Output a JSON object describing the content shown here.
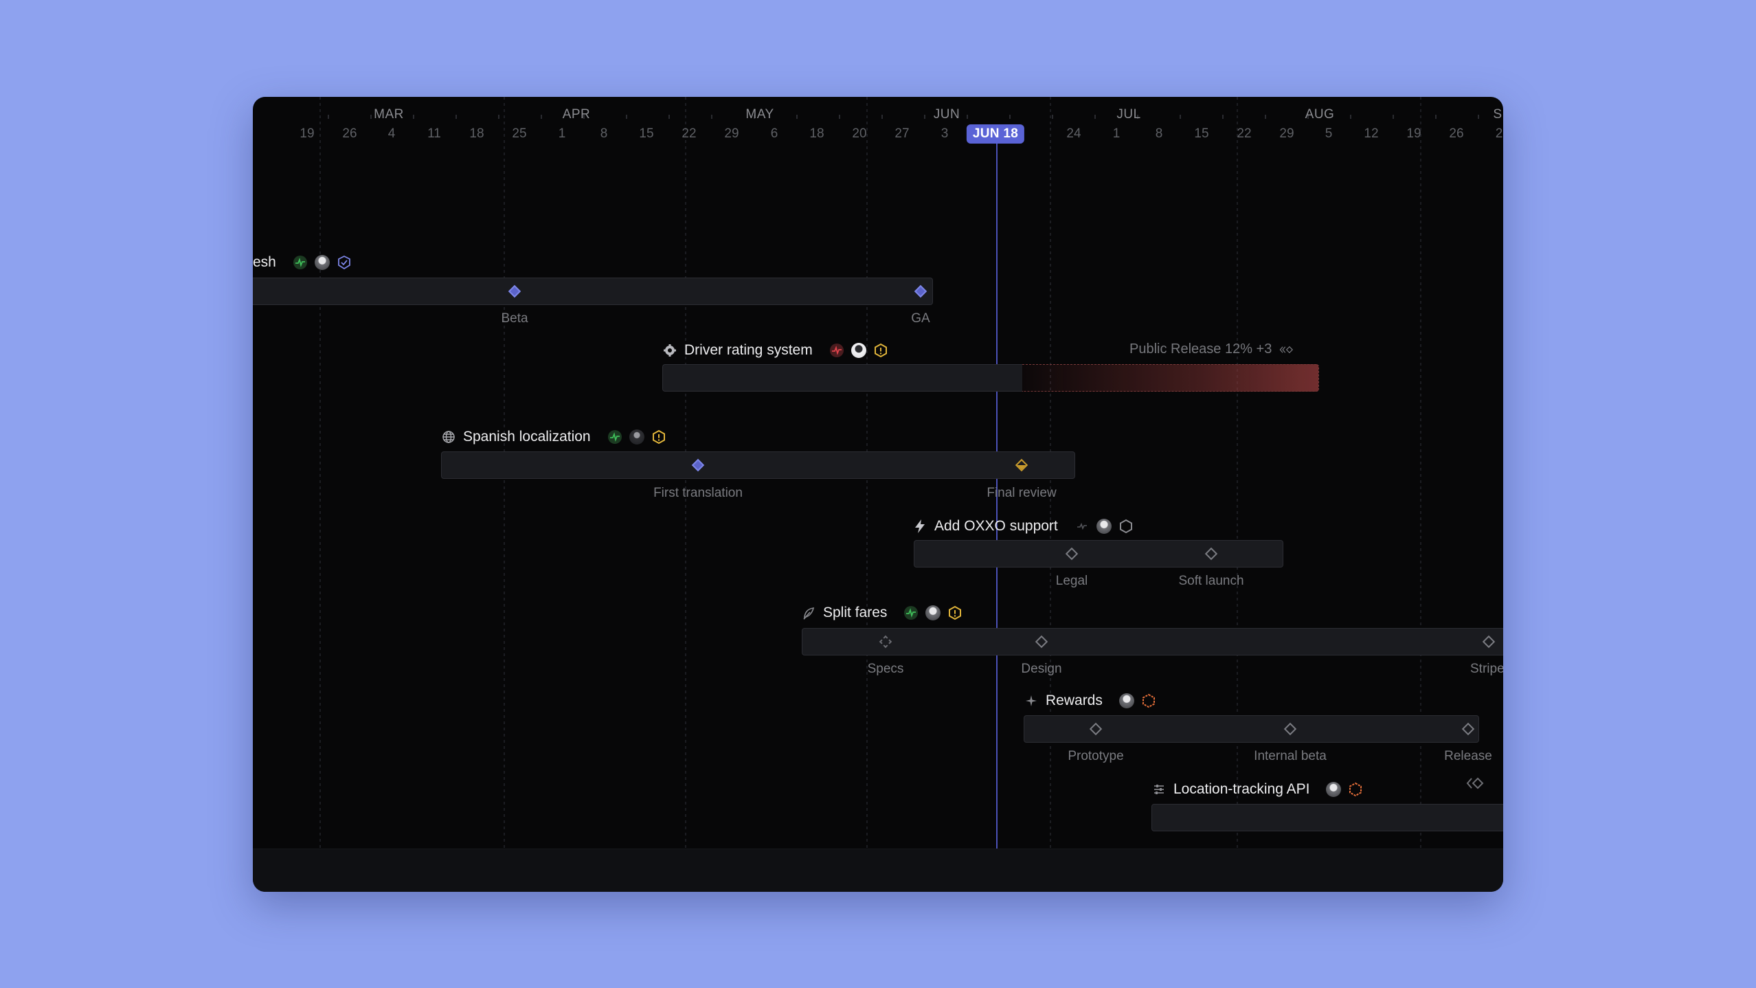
{
  "timeline": {
    "months": [
      "MAR",
      "APR",
      "MAY",
      "JUN",
      "JUL",
      "AUG",
      "S"
    ],
    "days": [
      "19",
      "26",
      "4",
      "11",
      "18",
      "25",
      "1",
      "8",
      "15",
      "22",
      "29",
      "6",
      "18",
      "20",
      "27",
      "3",
      "24",
      "1",
      "8",
      "15",
      "22",
      "29",
      "5",
      "12",
      "19",
      "26",
      "2"
    ],
    "today_label": "JUN 18"
  },
  "colors": {
    "background": "#8ea2ef",
    "window": "#070708",
    "accent": "#5a63d6",
    "health_on_track": "#2f9e44",
    "health_off_track": "#d9363e",
    "warning": "#e0b43a",
    "priority_urgent": "#e8703a"
  },
  "projects": [
    {
      "name": "esh",
      "icons": [
        "health-on-track-icon",
        "avatar",
        "shield-check-icon"
      ],
      "milestones": [
        {
          "label": "Beta",
          "state": "done"
        },
        {
          "label": "GA",
          "state": "done"
        }
      ]
    },
    {
      "name": "Driver rating system",
      "icons": [
        "gear-icon",
        "health-off-track-icon",
        "avatar",
        "hexagon-warning-icon"
      ],
      "release_tag": "Public Release 12% +3",
      "release_icon": "chevrons-diamond-icon"
    },
    {
      "name": "Spanish localization",
      "icons": [
        "globe-icon",
        "health-on-track-icon",
        "avatar",
        "hexagon-warning-icon"
      ],
      "milestones": [
        {
          "label": "First translation",
          "state": "done"
        },
        {
          "label": "Final review",
          "state": "warn"
        }
      ]
    },
    {
      "name": "Add OXXO support",
      "icons": [
        "lightning-icon",
        "health-none-icon",
        "avatar",
        "hexagon-outline-icon"
      ],
      "milestones": [
        {
          "label": "Legal",
          "state": "open"
        },
        {
          "label": "Soft launch",
          "state": "open"
        }
      ]
    },
    {
      "name": "Split fares",
      "icons": [
        "feather-icon",
        "health-on-track-icon",
        "avatar",
        "hexagon-warning-icon"
      ],
      "milestones": [
        {
          "label": "Specs",
          "state": "dashed"
        },
        {
          "label": "Design",
          "state": "open"
        },
        {
          "label": "Stripe",
          "state": "open"
        }
      ]
    },
    {
      "name": "Rewards",
      "icons": [
        "sparkle-icon",
        "avatar",
        "hexagon-urgent-icon"
      ],
      "milestones": [
        {
          "label": "Prototype",
          "state": "open"
        },
        {
          "label": "Internal beta",
          "state": "open"
        },
        {
          "label": "Release",
          "state": "open"
        }
      ]
    },
    {
      "name": "Location-tracking API",
      "icons": [
        "sliders-icon",
        "avatar",
        "hexagon-urgent-icon"
      ],
      "release_icon": "chevrons-diamond-icon"
    }
  ]
}
